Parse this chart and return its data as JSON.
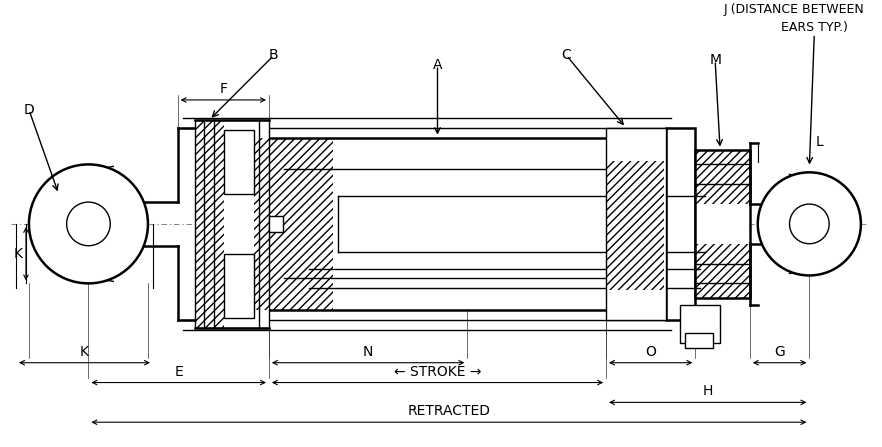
{
  "bg": "#ffffff",
  "lc": "#000000",
  "figsize": [
    8.82,
    4.47
  ],
  "dpi": 100,
  "xlim": [
    0,
    882
  ],
  "ylim": [
    0,
    447
  ],
  "fs": 10,
  "fs_small": 9,
  "lw": 1.0,
  "lw_thick": 1.8,
  "lw_dim": 0.8
}
